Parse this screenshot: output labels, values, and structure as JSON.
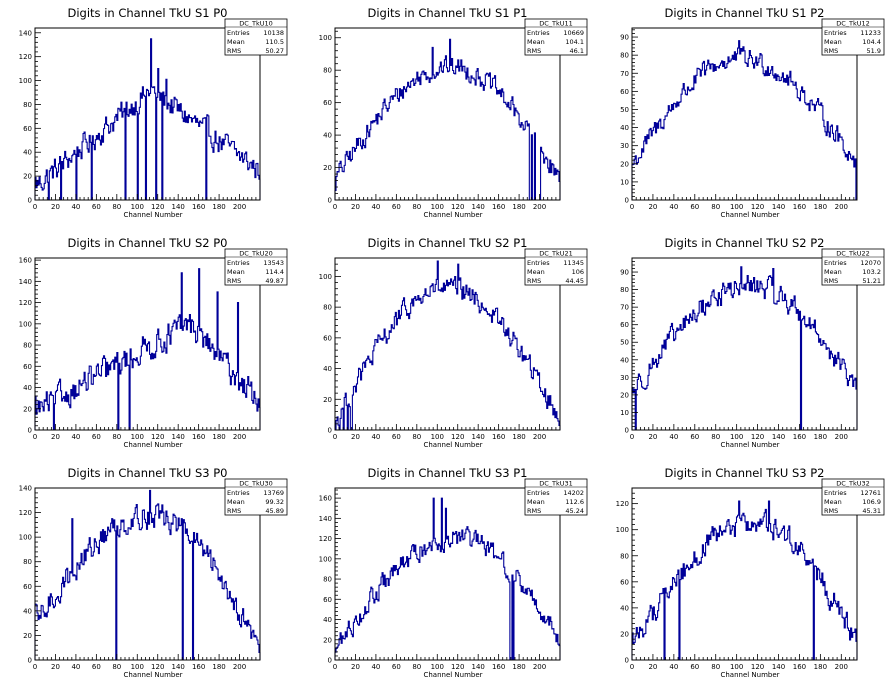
{
  "canvas_title": "",
  "colors": {
    "histogram": "#000099",
    "frame": "#000000",
    "background": "#ffffff"
  },
  "chart_data": [
    {
      "type": "histogram",
      "title": "Digits in Channel TkU S1 P0",
      "xlabel": "Channel Number",
      "ylabel": "",
      "xlim": [
        0,
        220
      ],
      "ylim": [
        0,
        144
      ],
      "xticks": [
        0,
        20,
        40,
        60,
        80,
        100,
        120,
        140,
        160,
        180,
        200
      ],
      "yticks": [
        0,
        20,
        40,
        60,
        80,
        100,
        120,
        140
      ],
      "stats": {
        "name": "DC_TkU10",
        "entries": "10138",
        "mean": "110.5",
        "rms": "50.27"
      },
      "n_bins": 220,
      "shape": "ramp-peak",
      "edge_low": 12,
      "peak_pos": 112,
      "peak": 92,
      "edge_high": 24,
      "noise": 16,
      "spike_up": [
        [
          113,
          135
        ],
        [
          128,
          101
        ],
        [
          120,
          110
        ]
      ],
      "dips": [
        13,
        25,
        40,
        55,
        88,
        100,
        108,
        118,
        124,
        167
      ]
    },
    {
      "type": "histogram",
      "title": "Digits in Channel TkU S1 P1",
      "xlabel": "Channel Number",
      "ylabel": "",
      "xlim": [
        0,
        220
      ],
      "ylim": [
        0,
        106
      ],
      "xticks": [
        0,
        20,
        40,
        60,
        80,
        100,
        120,
        140,
        160,
        180,
        200
      ],
      "yticks": [
        0,
        20,
        40,
        60,
        80,
        100
      ],
      "stats": {
        "name": "DC_TkU11",
        "entries": "10669",
        "mean": "104.1",
        "rms": "46.1"
      },
      "n_bins": 220,
      "shape": "hill",
      "edge_low": 14,
      "peak_pos": 112,
      "peak": 82,
      "edge_high": 12,
      "noise": 10,
      "spike_up": [
        [
          112,
          99
        ],
        [
          95,
          94
        ]
      ],
      "dips": [
        190,
        191,
        193,
        194,
        196,
        197,
        198,
        199,
        200
      ]
    },
    {
      "type": "histogram",
      "title": "Digits in Channel TkU S1 P2",
      "xlabel": "Channel Number",
      "ylabel": "",
      "xlim": [
        0,
        215
      ],
      "ylim": [
        0,
        95
      ],
      "xticks": [
        0,
        20,
        40,
        60,
        80,
        100,
        120,
        140,
        160,
        180,
        200
      ],
      "yticks": [
        0,
        10,
        20,
        30,
        40,
        50,
        60,
        70,
        80,
        90
      ],
      "stats": {
        "name": "DC_TkU12",
        "entries": "11233",
        "mean": "104.4",
        "rms": "51.9"
      },
      "n_bins": 211,
      "shape": "hill",
      "edge_low": 20,
      "peak_pos": 100,
      "peak": 78,
      "edge_high": 20,
      "noise": 9,
      "spike_up": [
        [
          100,
          88
        ]
      ],
      "dips": [
        210
      ]
    },
    {
      "type": "histogram",
      "title": "Digits in Channel TkU S2 P0",
      "xlabel": "Channel Number",
      "ylabel": "",
      "xlim": [
        0,
        220
      ],
      "ylim": [
        0,
        162
      ],
      "xticks": [
        0,
        20,
        40,
        60,
        80,
        100,
        120,
        140,
        160,
        180,
        200
      ],
      "yticks": [
        0,
        20,
        40,
        60,
        80,
        100,
        120,
        140,
        160
      ],
      "stats": {
        "name": "DC_TkU20",
        "entries": "13543",
        "mean": "114.4",
        "rms": "49.87"
      },
      "n_bins": 220,
      "shape": "ramp-peak",
      "edge_low": 18,
      "peak_pos": 150,
      "peak": 100,
      "edge_high": 25,
      "noise": 20,
      "spike_up": [
        [
          143,
          148
        ],
        [
          160,
          152
        ],
        [
          178,
          130
        ],
        [
          198,
          120
        ]
      ],
      "dips": [
        18,
        81,
        92
      ]
    },
    {
      "type": "histogram",
      "title": "Digits in Channel TkU S2 P1",
      "xlabel": "Channel Number",
      "ylabel": "",
      "xlim": [
        0,
        220
      ],
      "ylim": [
        0,
        112
      ],
      "xticks": [
        0,
        20,
        40,
        60,
        80,
        100,
        120,
        140,
        160,
        180,
        200
      ],
      "yticks": [
        0,
        20,
        40,
        60,
        80,
        100
      ],
      "stats": {
        "name": "DC_TkU21",
        "entries": "11345",
        "mean": "106",
        "rms": "44.45"
      },
      "n_bins": 220,
      "shape": "hill",
      "edge_low": 6,
      "peak_pos": 108,
      "peak": 92,
      "edge_high": 6,
      "noise": 11,
      "spike_up": [
        [
          100,
          110
        ],
        [
          120,
          108
        ]
      ],
      "dips": [
        0,
        4,
        8,
        12,
        15,
        16
      ]
    },
    {
      "type": "histogram",
      "title": "Digits in Channel TkU S2 P2",
      "xlabel": "Channel Number",
      "ylabel": "",
      "xlim": [
        0,
        215
      ],
      "ylim": [
        0,
        98
      ],
      "xticks": [
        0,
        20,
        40,
        60,
        80,
        100,
        120,
        140,
        160,
        180,
        200
      ],
      "yticks": [
        0,
        10,
        20,
        30,
        40,
        50,
        60,
        70,
        80,
        90
      ],
      "stats": {
        "name": "DC_TkU22",
        "entries": "12070",
        "mean": "103.2",
        "rms": "51.21"
      },
      "n_bins": 211,
      "shape": "hill",
      "edge_low": 22,
      "peak_pos": 110,
      "peak": 82,
      "edge_high": 22,
      "noise": 10,
      "spike_up": [
        [
          102,
          93
        ],
        [
          132,
          92
        ]
      ],
      "dips": [
        3,
        158
      ]
    },
    {
      "type": "histogram",
      "title": "Digits in Channel TkU S3 P0",
      "xlabel": "Channel Number",
      "ylabel": "",
      "xlim": [
        0,
        220
      ],
      "ylim": [
        0,
        140
      ],
      "xticks": [
        0,
        20,
        40,
        60,
        80,
        100,
        120,
        140,
        160,
        180,
        200
      ],
      "yticks": [
        0,
        20,
        40,
        60,
        80,
        100,
        120,
        140
      ],
      "stats": {
        "name": "DC_TkU30",
        "entries": "13769",
        "mean": "99.32",
        "rms": "45.89"
      },
      "n_bins": 220,
      "shape": "hill",
      "edge_low": 30,
      "peak_pos": 112,
      "peak": 118,
      "edge_high": 8,
      "noise": 16,
      "spike_up": [
        [
          36,
          115
        ],
        [
          112,
          138
        ]
      ],
      "dips": [
        79,
        144,
        154
      ]
    },
    {
      "type": "histogram",
      "title": "Digits in Channel TkU S3 P1",
      "xlabel": "Channel Number",
      "ylabel": "",
      "xlim": [
        0,
        220
      ],
      "ylim": [
        0,
        170
      ],
      "xticks": [
        0,
        20,
        40,
        60,
        80,
        100,
        120,
        140,
        160,
        180,
        200
      ],
      "yticks": [
        0,
        20,
        40,
        60,
        80,
        100,
        120,
        140,
        160
      ],
      "stats": {
        "name": "DC_TkU31",
        "entries": "14202",
        "mean": "112.6",
        "rms": "45.24"
      },
      "n_bins": 220,
      "shape": "hill",
      "edge_low": 12,
      "peak_pos": 118,
      "peak": 120,
      "edge_high": 20,
      "noise": 16,
      "spike_up": [
        [
          96,
          160
        ],
        [
          104,
          160
        ],
        [
          108,
          150
        ]
      ],
      "dips": [
        171,
        172,
        174
      ]
    },
    {
      "type": "histogram",
      "title": "Digits in Channel TkU S3 P2",
      "xlabel": "Channel Number",
      "ylabel": "",
      "xlim": [
        0,
        215
      ],
      "ylim": [
        0,
        132
      ],
      "xticks": [
        0,
        20,
        40,
        60,
        80,
        100,
        120,
        140,
        160,
        180,
        200
      ],
      "yticks": [
        0,
        20,
        40,
        60,
        80,
        100,
        120
      ],
      "stats": {
        "name": "DC_TkU32",
        "entries": "12761",
        "mean": "106.9",
        "rms": "45.31"
      },
      "n_bins": 211,
      "shape": "hill",
      "edge_low": 14,
      "peak_pos": 115,
      "peak": 105,
      "edge_high": 12,
      "noise": 14,
      "spike_up": [
        [
          100,
          122
        ],
        [
          128,
          122
        ]
      ],
      "dips": [
        30,
        44,
        170
      ]
    }
  ]
}
